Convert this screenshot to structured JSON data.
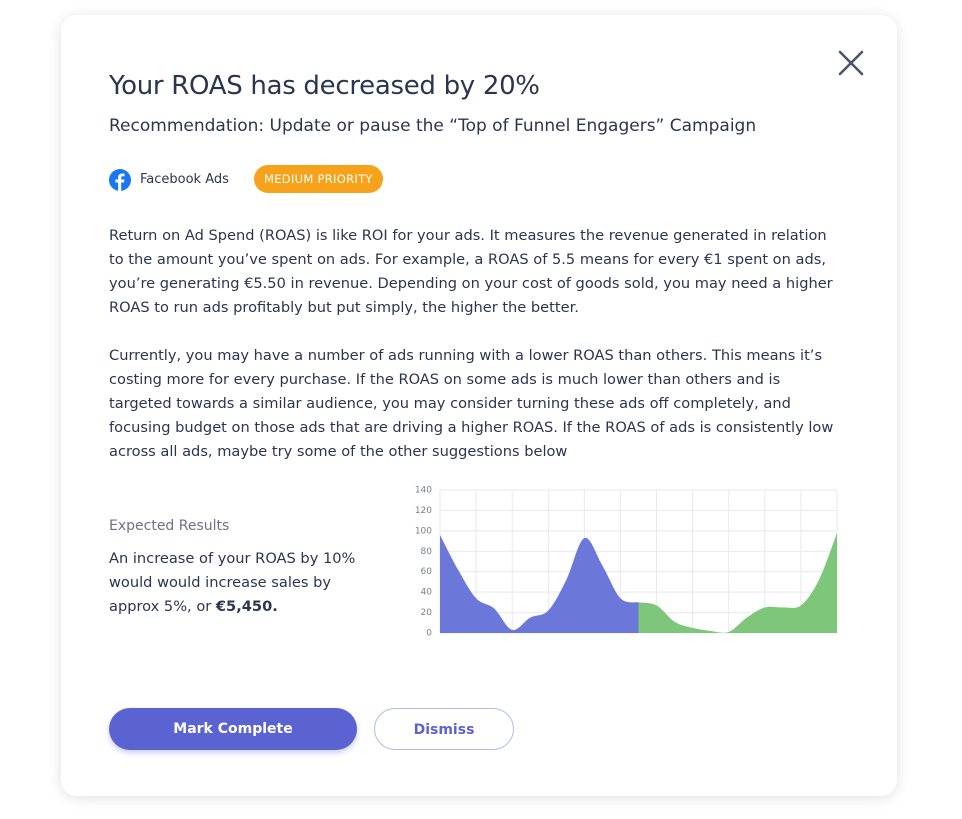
{
  "header": {
    "title": "Your ROAS has decreased by 20%",
    "subtitle": "Recommendation: Update or pause the “Top of Funnel Engagers” Campaign"
  },
  "source": "Facebook Ads",
  "priority": "MEDIUM PRIORITY",
  "paragraphs": [
    "Return on Ad Spend (ROAS) is like ROI for your ads. It measures the revenue generated in relation to the amount you’ve spent on ads. For example, a ROAS of 5.5 means for every €1 spent on ads, you’re generating €5.50 in revenue. Depending on your cost of goods sold, you may need a higher ROAS to run ads profitably but put simply, the higher the better.",
    "Currently, you may have a number of ads running with a lower ROAS than others. This means it’s costing more for every purchase. If the ROAS on some ads is much lower than others and is targeted towards a similar audience, you may consider turning these ads off completely, and focusing budget on those ads that are driving a higher ROAS. If the ROAS of ads is consistently low across all ads, maybe try some of the other suggestions below"
  ],
  "expected": {
    "heading": "Expected Results",
    "text": "An increase of your ROAS by 10% would would increase sales by approx 5%, or ",
    "amount": "€5,450."
  },
  "chart_data": {
    "type": "area",
    "x": [
      0,
      0.5,
      1,
      1.5,
      2,
      2.5,
      3,
      3.5,
      4,
      4.5,
      5,
      5.5,
      6,
      6.5,
      7,
      7.5,
      8,
      8.5,
      9,
      9.5,
      10,
      10.5,
      11
    ],
    "series": [
      {
        "color": "#6c78d9",
        "values": [
          96,
          62,
          34,
          24,
          3,
          15,
          22,
          52,
          93,
          66,
          34,
          30,
          null,
          null,
          null,
          null,
          null,
          null,
          null,
          null,
          null,
          null,
          null
        ]
      },
      {
        "color": "#7dc67a",
        "values": [
          null,
          null,
          null,
          null,
          null,
          null,
          null,
          null,
          null,
          null,
          null,
          30,
          27,
          11,
          5,
          2,
          1,
          15,
          25,
          25,
          27,
          52,
          98
        ]
      }
    ],
    "xlim": [
      0,
      11
    ],
    "xticks": [
      0,
      1,
      2,
      3,
      4,
      5,
      6,
      7,
      8,
      9,
      10,
      11
    ],
    "ylim": [
      0,
      140
    ],
    "yticks": [
      0,
      20,
      40,
      60,
      80,
      100,
      120,
      140
    ],
    "grid": true
  },
  "buttons": {
    "primary": "Mark Complete",
    "secondary": "Dismiss"
  }
}
